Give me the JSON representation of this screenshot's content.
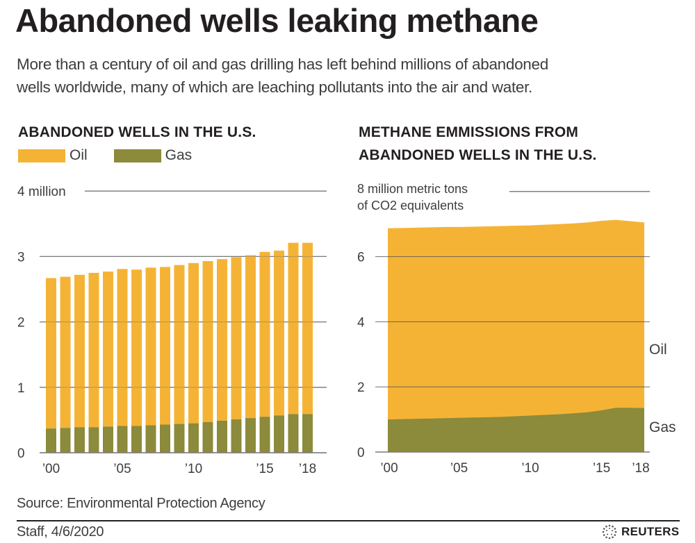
{
  "header": {
    "title": "Abandoned wells leaking methane",
    "subtitle_line1": "More than a century of oil and gas drilling has left behind millions of abandoned",
    "subtitle_line2": "wells worldwide, many of which are leaching pollutants into the air and water."
  },
  "colors": {
    "oil": "#f5b335",
    "gas": "#8c8a3b",
    "gridline": "#7a7a7a",
    "text": "#3d3d3d"
  },
  "chart_data": [
    {
      "type": "bar",
      "stacked": true,
      "title": "ABANDONED WELLS IN THE U.S.",
      "ylabel": "4 million",
      "ylim": [
        0,
        4
      ],
      "yticks": [
        0,
        1,
        2,
        3,
        4
      ],
      "ytick_labels": [
        "0",
        "1",
        "2",
        "3",
        "4 million"
      ],
      "grid": true,
      "legend": [
        {
          "name": "Oil",
          "color": "#f5b335"
        },
        {
          "name": "Gas",
          "color": "#8c8a3b"
        }
      ],
      "legend_position": "top-left",
      "x": [
        2000,
        2001,
        2002,
        2003,
        2004,
        2005,
        2006,
        2007,
        2008,
        2009,
        2010,
        2011,
        2012,
        2013,
        2014,
        2015,
        2016,
        2017,
        2018
      ],
      "xtick_labels": [
        {
          "year": 2000,
          "label": "’00"
        },
        {
          "year": 2005,
          "label": "’05"
        },
        {
          "year": 2010,
          "label": "’10"
        },
        {
          "year": 2015,
          "label": "’15"
        },
        {
          "year": 2018,
          "label": "’18"
        }
      ],
      "series": [
        {
          "name": "Gas",
          "color": "#8c8a3b",
          "values": [
            0.37,
            0.38,
            0.39,
            0.39,
            0.4,
            0.41,
            0.41,
            0.42,
            0.43,
            0.44,
            0.45,
            0.47,
            0.49,
            0.51,
            0.53,
            0.55,
            0.57,
            0.59,
            0.59
          ]
        },
        {
          "name": "Oil",
          "color": "#f5b335",
          "values": [
            2.3,
            2.31,
            2.33,
            2.36,
            2.37,
            2.4,
            2.39,
            2.41,
            2.41,
            2.43,
            2.45,
            2.46,
            2.47,
            2.48,
            2.49,
            2.52,
            2.52,
            2.62,
            2.62
          ]
        }
      ],
      "totals": [
        2.67,
        2.69,
        2.72,
        2.75,
        2.77,
        2.81,
        2.8,
        2.83,
        2.84,
        2.87,
        2.9,
        2.93,
        2.96,
        2.99,
        3.02,
        3.07,
        3.09,
        3.21,
        3.21
      ]
    },
    {
      "type": "area",
      "stacked": true,
      "title_line1": "METHANE EMMISSIONS FROM",
      "title_line2": "ABANDONED WELLS IN THE U.S.",
      "ylabel_line1": "8 million metric tons",
      "ylabel_line2": "of CO2 equivalents",
      "ylim": [
        0,
        8
      ],
      "yticks": [
        0,
        2,
        4,
        6,
        8
      ],
      "ytick_labels": [
        "0",
        "2",
        "4",
        "6"
      ],
      "grid": true,
      "x": [
        2000,
        2001,
        2002,
        2003,
        2004,
        2005,
        2006,
        2007,
        2008,
        2009,
        2010,
        2011,
        2012,
        2013,
        2014,
        2015,
        2016,
        2017,
        2018
      ],
      "xtick_labels": [
        {
          "year": 2000,
          "label": "’00"
        },
        {
          "year": 2005,
          "label": "’05"
        },
        {
          "year": 2010,
          "label": "’10"
        },
        {
          "year": 2015,
          "label": "’15"
        },
        {
          "year": 2018,
          "label": "’18"
        }
      ],
      "series": [
        {
          "name": "Gas",
          "color": "#8c8a3b",
          "label": "Gas",
          "values": [
            1.0,
            1.01,
            1.02,
            1.03,
            1.04,
            1.05,
            1.06,
            1.07,
            1.08,
            1.1,
            1.12,
            1.14,
            1.16,
            1.19,
            1.22,
            1.28,
            1.36,
            1.36,
            1.35
          ]
        },
        {
          "name": "Oil",
          "color": "#f5b335",
          "label": "Oil",
          "values": [
            5.87,
            5.87,
            5.87,
            5.87,
            5.87,
            5.86,
            5.86,
            5.86,
            5.86,
            5.85,
            5.84,
            5.84,
            5.84,
            5.83,
            5.83,
            5.82,
            5.77,
            5.73,
            5.7
          ]
        }
      ],
      "totals": [
        6.87,
        6.88,
        6.89,
        6.9,
        6.91,
        6.91,
        6.92,
        6.93,
        6.94,
        6.95,
        6.96,
        6.98,
        7.0,
        7.02,
        7.05,
        7.1,
        7.13,
        7.09,
        7.05
      ]
    }
  ],
  "footer": {
    "source": "Source: Environmental Protection Agency",
    "byline": "Staff, 4/6/2020",
    "logo_text": "REUTERS"
  }
}
